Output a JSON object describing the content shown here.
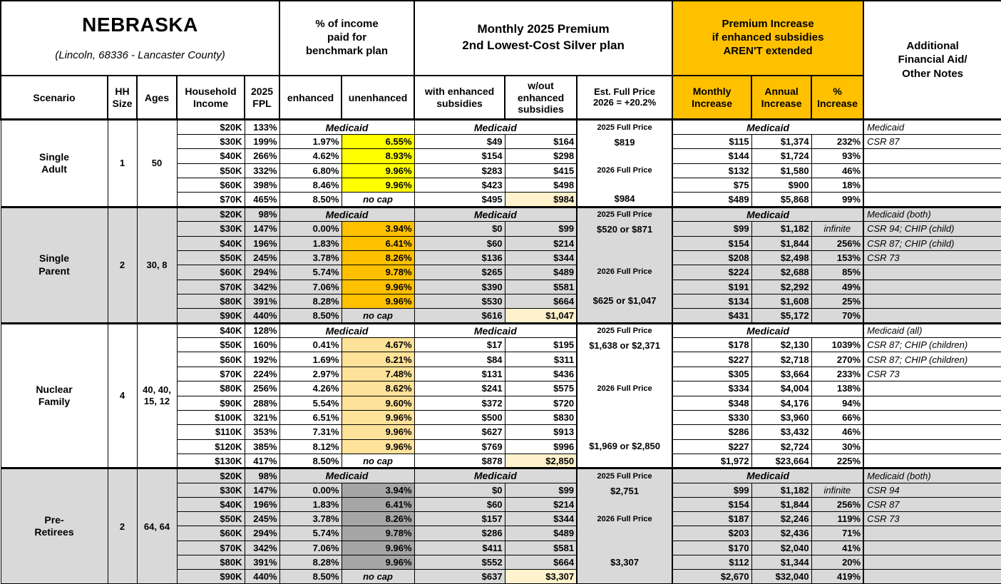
{
  "header": {
    "title": "NEBRASKA",
    "subtitle": "(Lincoln, 68336 - Lancaster County)",
    "groups": {
      "pct_income": "% of income\npaid for\nbenchmark plan",
      "premium": "Monthly 2025 Premium\n2nd Lowest-Cost Silver plan",
      "increase": "Premium Increase\nif enhanced subsidies\nAREN'T extended",
      "notes": "Additional\nFinancial Aid/\nOther Notes"
    },
    "cols": {
      "scenario": "Scenario",
      "hh_size": "HH\nSize",
      "ages": "Ages",
      "income": "Household\nIncome",
      "fpl": "2025\nFPL",
      "enhanced": "enhanced",
      "unenhanced": "unenhanced",
      "with_sub": "with enhanced\nsubsidies",
      "wout_sub": "w/out\nenhanced\nsubsidies",
      "full_price": "Est. Full Price\n2026 = +20.2%",
      "monthly": "Monthly\nIncrease",
      "annual": "Annual\nIncrease",
      "pct": "%\nIncrease"
    }
  },
  "labels": {
    "medicaid": "Medicaid",
    "no_cap": "no cap",
    "infinite": "infinite",
    "full_price_2025": "2025 Full Price",
    "full_price_2026": "2026 Full Price"
  },
  "colors": {
    "accent_orange": "#FFC000",
    "yellow": "#FFFF00",
    "tan": "#FFE299",
    "dark_gray": "#A6A6A6",
    "row_shade": "#D9D9D9",
    "highlight_cream": "#FFF2CC"
  },
  "groups": [
    {
      "scenario": "Single\nAdult",
      "hh_size": "1",
      "ages": "50",
      "shaded": false,
      "unenhanced_color": "#FFFF00",
      "full_price": [
        {
          "row": 0,
          "text": "2025 Full Price",
          "style": "lab"
        },
        {
          "row": 1,
          "text": "$819",
          "style": "val"
        },
        {
          "row": 3,
          "text": "2026 Full Price",
          "style": "lab"
        },
        {
          "row": 5,
          "text": "$984",
          "style": "val"
        }
      ],
      "rows": [
        {
          "income": "$20K",
          "fpl": "133%",
          "medicaid": true,
          "note": "Medicaid"
        },
        {
          "income": "$30K",
          "fpl": "199%",
          "enhanced": "1.97%",
          "unenhanced": "6.55%",
          "with_sub": "$49",
          "wout_sub": "$164",
          "monthly": "$115",
          "annual": "$1,374",
          "pct": "232%",
          "note": "CSR 87"
        },
        {
          "income": "$40K",
          "fpl": "266%",
          "enhanced": "4.62%",
          "unenhanced": "8.93%",
          "with_sub": "$154",
          "wout_sub": "$298",
          "monthly": "$144",
          "annual": "$1,724",
          "pct": "93%",
          "note": ""
        },
        {
          "income": "$50K",
          "fpl": "332%",
          "enhanced": "6.80%",
          "unenhanced": "9.96%",
          "with_sub": "$283",
          "wout_sub": "$415",
          "monthly": "$132",
          "annual": "$1,580",
          "pct": "46%",
          "note": ""
        },
        {
          "income": "$60K",
          "fpl": "398%",
          "enhanced": "8.46%",
          "unenhanced": "9.96%",
          "with_sub": "$423",
          "wout_sub": "$498",
          "monthly": "$75",
          "annual": "$900",
          "pct": "18%",
          "note": ""
        },
        {
          "income": "$70K",
          "fpl": "465%",
          "enhanced": "8.50%",
          "unenhanced": "no cap",
          "no_cap": true,
          "with_sub": "$495",
          "wout_sub": "$984",
          "wout_highlight": true,
          "monthly": "$489",
          "annual": "$5,868",
          "pct": "99%",
          "note": ""
        }
      ]
    },
    {
      "scenario": "Single\nParent",
      "hh_size": "2",
      "ages": "30, 8",
      "shaded": true,
      "unenhanced_color": "#FFC000",
      "full_price": [
        {
          "row": 0,
          "text": "2025 Full Price",
          "style": "lab"
        },
        {
          "row": 1,
          "text": "$520 or $871",
          "style": "val"
        },
        {
          "row": 4,
          "text": "2026 Full Price",
          "style": "lab"
        },
        {
          "row": 6,
          "text": "$625 or $1,047",
          "style": "val"
        }
      ],
      "rows": [
        {
          "income": "$20K",
          "fpl": "98%",
          "medicaid": true,
          "note": "Medicaid (both)"
        },
        {
          "income": "$30K",
          "fpl": "147%",
          "enhanced": "0.00%",
          "unenhanced": "3.94%",
          "with_sub": "$0",
          "wout_sub": "$99",
          "monthly": "$99",
          "annual": "$1,182",
          "pct": "infinite",
          "infinite": true,
          "note": "CSR 94; CHIP (child)"
        },
        {
          "income": "$40K",
          "fpl": "196%",
          "enhanced": "1.83%",
          "unenhanced": "6.41%",
          "with_sub": "$60",
          "wout_sub": "$214",
          "monthly": "$154",
          "annual": "$1,844",
          "pct": "256%",
          "note": "CSR 87; CHIP (child)"
        },
        {
          "income": "$50K",
          "fpl": "245%",
          "enhanced": "3.78%",
          "unenhanced": "8.26%",
          "with_sub": "$136",
          "wout_sub": "$344",
          "monthly": "$208",
          "annual": "$2,498",
          "pct": "153%",
          "note": "CSR 73"
        },
        {
          "income": "$60K",
          "fpl": "294%",
          "enhanced": "5.74%",
          "unenhanced": "9.78%",
          "with_sub": "$265",
          "wout_sub": "$489",
          "monthly": "$224",
          "annual": "$2,688",
          "pct": "85%",
          "note": ""
        },
        {
          "income": "$70K",
          "fpl": "342%",
          "enhanced": "7.06%",
          "unenhanced": "9.96%",
          "with_sub": "$390",
          "wout_sub": "$581",
          "monthly": "$191",
          "annual": "$2,292",
          "pct": "49%",
          "note": ""
        },
        {
          "income": "$80K",
          "fpl": "391%",
          "enhanced": "8.28%",
          "unenhanced": "9.96%",
          "with_sub": "$530",
          "wout_sub": "$664",
          "monthly": "$134",
          "annual": "$1,608",
          "pct": "25%",
          "note": ""
        },
        {
          "income": "$90K",
          "fpl": "440%",
          "enhanced": "8.50%",
          "unenhanced": "no cap",
          "no_cap": true,
          "with_sub": "$616",
          "wout_sub": "$1,047",
          "wout_highlight": true,
          "monthly": "$431",
          "annual": "$5,172",
          "pct": "70%",
          "note": ""
        }
      ]
    },
    {
      "scenario": "Nuclear\nFamily",
      "hh_size": "4",
      "ages": "40, 40,\n15, 12",
      "shaded": false,
      "unenhanced_color": "#FFE299",
      "full_price": [
        {
          "row": 0,
          "text": "2025 Full Price",
          "style": "lab"
        },
        {
          "row": 1,
          "text": "$1,638 or $2,371",
          "style": "val"
        },
        {
          "row": 4,
          "text": "2026 Full Price",
          "style": "lab"
        },
        {
          "row": 8,
          "text": "$1,969 or $2,850",
          "style": "val"
        }
      ],
      "rows": [
        {
          "income": "$40K",
          "fpl": "128%",
          "medicaid": true,
          "note": "Medicaid (all)"
        },
        {
          "income": "$50K",
          "fpl": "160%",
          "enhanced": "0.41%",
          "unenhanced": "4.67%",
          "with_sub": "$17",
          "wout_sub": "$195",
          "monthly": "$178",
          "annual": "$2,130",
          "pct": "1039%",
          "note": "CSR 87; CHIP (children)"
        },
        {
          "income": "$60K",
          "fpl": "192%",
          "enhanced": "1.69%",
          "unenhanced": "6.21%",
          "with_sub": "$84",
          "wout_sub": "$311",
          "monthly": "$227",
          "annual": "$2,718",
          "pct": "270%",
          "note": "CSR 87; CHIP (children)"
        },
        {
          "income": "$70K",
          "fpl": "224%",
          "enhanced": "2.97%",
          "unenhanced": "7.48%",
          "with_sub": "$131",
          "wout_sub": "$436",
          "monthly": "$305",
          "annual": "$3,664",
          "pct": "233%",
          "note": "CSR 73"
        },
        {
          "income": "$80K",
          "fpl": "256%",
          "enhanced": "4.26%",
          "unenhanced": "8.62%",
          "with_sub": "$241",
          "wout_sub": "$575",
          "monthly": "$334",
          "annual": "$4,004",
          "pct": "138%",
          "note": ""
        },
        {
          "income": "$90K",
          "fpl": "288%",
          "enhanced": "5.54%",
          "unenhanced": "9.60%",
          "with_sub": "$372",
          "wout_sub": "$720",
          "monthly": "$348",
          "annual": "$4,176",
          "pct": "94%",
          "note": ""
        },
        {
          "income": "$100K",
          "fpl": "321%",
          "enhanced": "6.51%",
          "unenhanced": "9.96%",
          "with_sub": "$500",
          "wout_sub": "$830",
          "monthly": "$330",
          "annual": "$3,960",
          "pct": "66%",
          "note": ""
        },
        {
          "income": "$110K",
          "fpl": "353%",
          "enhanced": "7.31%",
          "unenhanced": "9.96%",
          "with_sub": "$627",
          "wout_sub": "$913",
          "monthly": "$286",
          "annual": "$3,432",
          "pct": "46%",
          "note": ""
        },
        {
          "income": "$120K",
          "fpl": "385%",
          "enhanced": "8.12%",
          "unenhanced": "9.96%",
          "with_sub": "$769",
          "wout_sub": "$996",
          "monthly": "$227",
          "annual": "$2,724",
          "pct": "30%",
          "note": ""
        },
        {
          "income": "$130K",
          "fpl": "417%",
          "enhanced": "8.50%",
          "unenhanced": "no cap",
          "no_cap": true,
          "with_sub": "$878",
          "wout_sub": "$2,850",
          "wout_highlight": true,
          "monthly": "$1,972",
          "annual": "$23,664",
          "pct": "225%",
          "note": ""
        }
      ]
    },
    {
      "scenario": "Pre-\nRetirees",
      "hh_size": "2",
      "ages": "64, 64",
      "shaded": true,
      "unenhanced_color": "#A6A6A6",
      "full_price": [
        {
          "row": 0,
          "text": "2025 Full Price",
          "style": "lab"
        },
        {
          "row": 1,
          "text": "$2,751",
          "style": "val"
        },
        {
          "row": 3,
          "text": "2026 Full Price",
          "style": "lab"
        },
        {
          "row": 6,
          "text": "$3,307",
          "style": "val"
        }
      ],
      "rows": [
        {
          "income": "$20K",
          "fpl": "98%",
          "medicaid": true,
          "note": "Medicaid (both)"
        },
        {
          "income": "$30K",
          "fpl": "147%",
          "enhanced": "0.00%",
          "unenhanced": "3.94%",
          "with_sub": "$0",
          "wout_sub": "$99",
          "monthly": "$99",
          "annual": "$1,182",
          "pct": "infinite",
          "infinite": true,
          "note": "CSR 94"
        },
        {
          "income": "$40K",
          "fpl": "196%",
          "enhanced": "1.83%",
          "unenhanced": "6.41%",
          "with_sub": "$60",
          "wout_sub": "$214",
          "monthly": "$154",
          "annual": "$1,844",
          "pct": "256%",
          "note": "CSR 87"
        },
        {
          "income": "$50K",
          "fpl": "245%",
          "enhanced": "3.78%",
          "unenhanced": "8.26%",
          "with_sub": "$157",
          "wout_sub": "$344",
          "monthly": "$187",
          "annual": "$2,246",
          "pct": "119%",
          "note": "CSR 73"
        },
        {
          "income": "$60K",
          "fpl": "294%",
          "enhanced": "5.74%",
          "unenhanced": "9.78%",
          "with_sub": "$286",
          "wout_sub": "$489",
          "monthly": "$203",
          "annual": "$2,436",
          "pct": "71%",
          "note": ""
        },
        {
          "income": "$70K",
          "fpl": "342%",
          "enhanced": "7.06%",
          "unenhanced": "9.96%",
          "with_sub": "$411",
          "wout_sub": "$581",
          "monthly": "$170",
          "annual": "$2,040",
          "pct": "41%",
          "note": ""
        },
        {
          "income": "$80K",
          "fpl": "391%",
          "enhanced": "8.28%",
          "unenhanced": "9.96%",
          "with_sub": "$552",
          "wout_sub": "$664",
          "monthly": "$112",
          "annual": "$1,344",
          "pct": "20%",
          "note": ""
        },
        {
          "income": "$90K",
          "fpl": "440%",
          "enhanced": "8.50%",
          "unenhanced": "no cap",
          "no_cap": true,
          "with_sub": "$637",
          "wout_sub": "$3,307",
          "wout_highlight": true,
          "monthly": "$2,670",
          "annual": "$32,040",
          "pct": "419%",
          "note": ""
        }
      ]
    }
  ]
}
